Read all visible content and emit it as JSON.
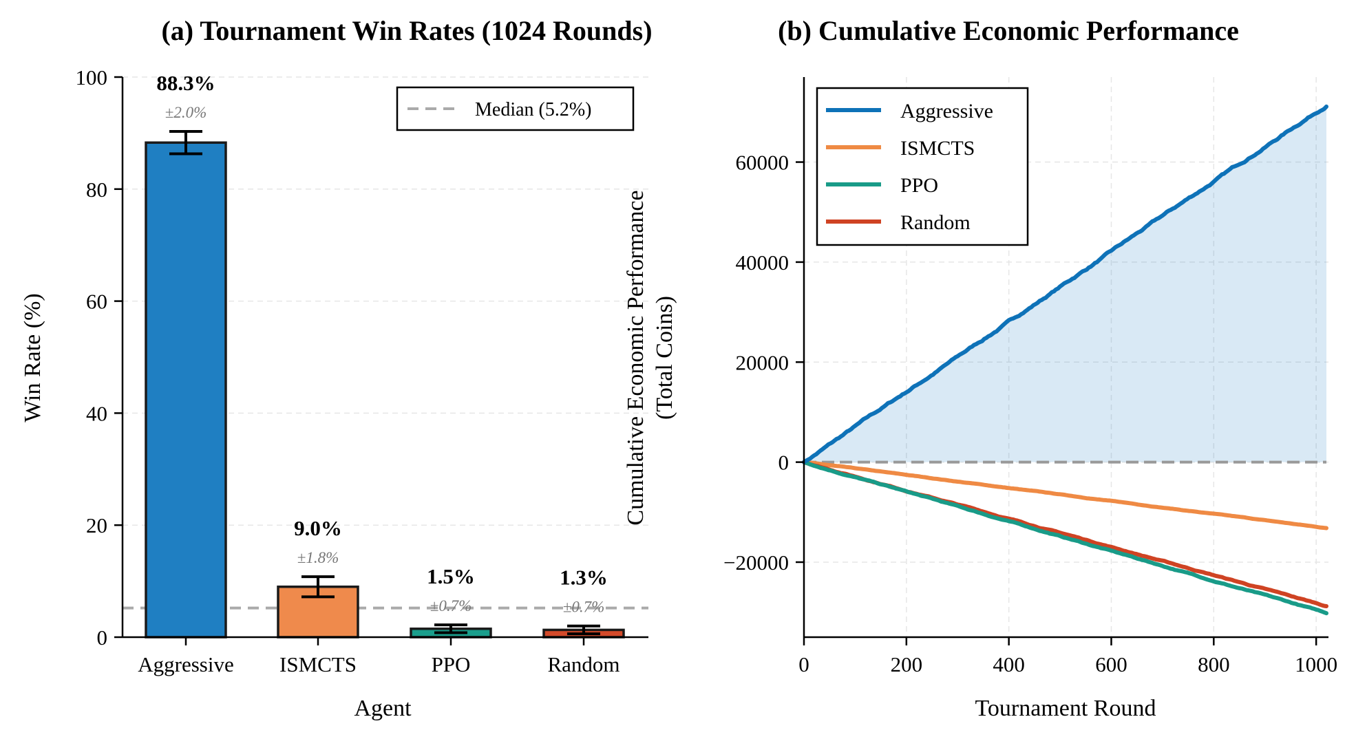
{
  "chart_data": [
    {
      "type": "bar",
      "title": "(a) Tournament Win Rates (1024 Rounds)",
      "xlabel": "Agent",
      "ylabel": "Win Rate (%)",
      "categories": [
        "Aggressive",
        "ISMCTS",
        "PPO",
        "Random"
      ],
      "values": [
        88.3,
        9.0,
        1.5,
        1.3
      ],
      "errors": [
        2.0,
        1.8,
        0.7,
        0.7
      ],
      "value_labels": [
        "88.3%",
        "9.0%",
        "1.5%",
        "1.3%"
      ],
      "error_labels": [
        "±2.0%",
        "±1.8%",
        "±0.7%",
        "±0.7%"
      ],
      "colors": [
        "#1f7fc2",
        "#ef8a4c",
        "#1a9e8c",
        "#d44a2a"
      ],
      "ylim": [
        0,
        100
      ],
      "yticks": [
        0,
        20,
        40,
        60,
        80,
        100
      ],
      "median": 5.2,
      "legend": {
        "label": "Median (5.2%)",
        "position": "top-right"
      },
      "grid": true
    },
    {
      "type": "line",
      "title": "(b) Cumulative Economic Performance",
      "xlabel": "Tournament Round",
      "ylabel_line1": "Cumulative Economic Performance",
      "ylabel_line2": "(Total Coins)",
      "xlim": [
        0,
        1024
      ],
      "ylim": [
        -35000,
        77000
      ],
      "xticks": [
        0,
        200,
        400,
        600,
        800,
        1000
      ],
      "yticks": [
        -20000,
        0,
        20000,
        40000,
        60000
      ],
      "ytick_labels": [
        "−20000",
        "0",
        "20000",
        "40000",
        "60000"
      ],
      "xtick_labels": [
        "0",
        "200",
        "400",
        "600",
        "800",
        "1000"
      ],
      "reference_line": 0,
      "legend_position": "top-left",
      "grid": true,
      "series": [
        {
          "name": "Aggressive",
          "color": "#0e72b8",
          "start": 0,
          "end": 71500,
          "fill": true
        },
        {
          "name": "ISMCTS",
          "color": "#ef8a44",
          "start": 0,
          "end": -13200
        },
        {
          "name": "PPO",
          "color": "#199b88",
          "start": 0,
          "end": -30200
        },
        {
          "name": "Random",
          "color": "#cf4323",
          "start": 0,
          "end": -28800
        }
      ]
    }
  ]
}
